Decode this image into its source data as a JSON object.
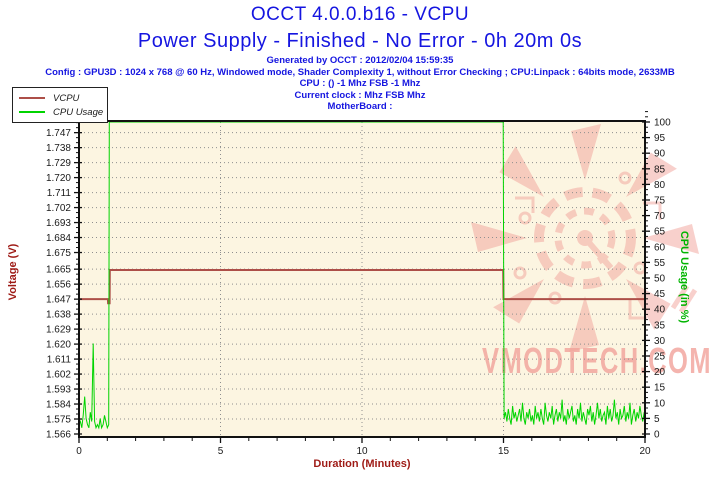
{
  "header": {
    "title": "OCCT 4.0.0.b16 - VCPU",
    "subtitle": "Power Supply - Finished - No Error - 0h 20m 0s",
    "generated": "Generated by OCCT : 2012/02/04 15:59:35",
    "config": "Config : GPU3D : 1024 x 768 @ 60 Hz, Windowed mode, Shader Complexity 1, without Error Checking ; CPU:Linpack : 64bits mode, 2633MB",
    "cpu_line": "CPU :  () -1 Mhz FSB -1 Mhz",
    "clock_line": "Current clock :  Mhz FSB  Mhz",
    "motherboard_line": "MotherBoard :"
  },
  "legend": {
    "items": [
      {
        "label": "VCPU",
        "color": "#ad4f48"
      },
      {
        "label": "CPU Usage",
        "color": "#00d400"
      }
    ]
  },
  "watermark": {
    "text": "VMODTECH.COM",
    "color": "#f2a29a"
  },
  "colors": {
    "title_blue": "#1515e0",
    "plot_bg": "#fcf5e1",
    "grid": "#8f8f8f",
    "axis_line": "#111111",
    "tick_text": "#1a1a1a",
    "axis_red": "#9e1a15",
    "axis_green": "#00b400",
    "vcpu_line": "#ad4f48",
    "cpu_line": "#00d400"
  },
  "chart_data": {
    "type": "line",
    "title": "OCCT 4.0.0.b16 - VCPU",
    "xlabel": "Duration (Minutes)",
    "xlim": [
      0,
      20
    ],
    "x_ticks": [
      0,
      5,
      10,
      15,
      20
    ],
    "x_minor_step": 1,
    "grid": "dotted horizontal at every left tick, vertical at major x ticks",
    "legend_position": "top-left",
    "y_left": {
      "label": "Voltage (V)",
      "lim": [
        1.566,
        1.7549
      ],
      "tick_labels": [
        "1.566",
        "1.575",
        "1.584",
        "1.593",
        "1.602",
        "1.611",
        "1.620",
        "1.629",
        "1.638",
        "1.647",
        "1.656",
        "1.665",
        "1.675",
        "1.684",
        "1.693",
        "1.702",
        "1.711",
        "1.720",
        "1.729",
        "1.738",
        "1.747"
      ]
    },
    "y_right": {
      "label": "CPU Usage (in %)",
      "lim": [
        0,
        100
      ],
      "ticks": [
        0,
        5,
        10,
        15,
        20,
        25,
        30,
        35,
        40,
        45,
        50,
        55,
        60,
        65,
        70,
        75,
        80,
        85,
        90,
        95,
        100
      ]
    },
    "series": [
      {
        "name": "VCPU",
        "axis": "left",
        "color": "#ad4f48",
        "width": 2,
        "points": [
          [
            0,
            1.647
          ],
          [
            1.02,
            1.647
          ],
          [
            1.03,
            1.6445
          ],
          [
            1.08,
            1.6445
          ],
          [
            1.09,
            1.6645
          ],
          [
            14.99,
            1.6645
          ],
          [
            15.0,
            1.647
          ],
          [
            20,
            1.647
          ]
        ]
      },
      {
        "name": "CPU Usage",
        "axis": "right",
        "color": "#00d400",
        "width": 1,
        "segments": [
          {
            "t0": 0,
            "dt": 0.05,
            "values": [
              3,
              4,
              2,
              6,
              12,
              5,
              3,
              2,
              7,
              4,
              29,
              4,
              2,
              3,
              2,
              5,
              2,
              3,
              6,
              4,
              2,
              3
            ]
          },
          {
            "points": [
              [
                1.07,
                100
              ],
              [
                14.99,
                100
              ]
            ]
          },
          {
            "t0": 15.02,
            "dt": 0.05,
            "values": [
              5,
              7,
              4,
              8,
              5,
              3,
              9,
              5,
              7,
              4,
              6,
              8,
              4,
              10,
              5,
              3,
              7,
              5,
              8,
              4,
              6,
              3,
              9,
              5,
              7,
              4,
              8,
              5,
              3,
              10,
              6,
              4,
              7,
              5,
              9,
              3,
              6,
              8,
              4,
              7,
              5,
              11,
              4,
              6,
              3,
              8,
              5,
              7,
              9,
              4,
              6,
              3,
              8,
              5,
              10,
              4,
              7,
              5,
              3,
              8,
              6,
              9,
              4,
              7,
              3,
              6,
              10,
              5,
              8,
              4,
              6,
              7,
              3,
              9,
              5,
              8,
              4,
              6,
              11,
              5,
              7,
              3,
              8,
              5,
              6,
              9,
              4,
              7,
              5,
              10,
              3,
              6,
              8,
              4,
              7,
              5,
              9,
              6,
              4,
              7
            ]
          }
        ]
      }
    ]
  }
}
